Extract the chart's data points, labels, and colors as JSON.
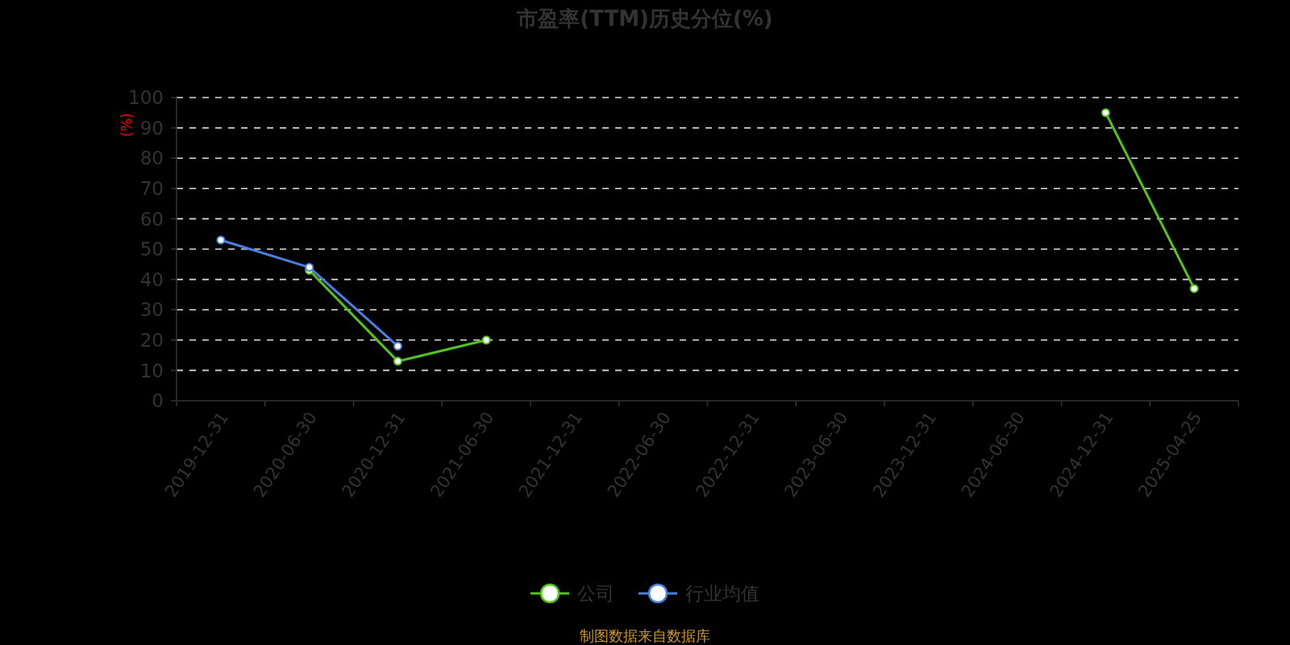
{
  "chart_data": {
    "type": "line",
    "title": "市盈率(TTM)历史分位(%)",
    "ylabel": "(%)",
    "categories": [
      "2019-12-31",
      "2020-06-30",
      "2020-12-31",
      "2021-06-30",
      "2021-12-31",
      "2022-06-30",
      "2022-12-31",
      "2023-06-30",
      "2023-12-31",
      "2024-06-30",
      "2024-12-31",
      "2025-04-25"
    ],
    "series": [
      {
        "name": "公司",
        "color": "#52c41a",
        "values": [
          null,
          43,
          13,
          20,
          null,
          null,
          null,
          null,
          null,
          null,
          95,
          37
        ]
      },
      {
        "name": "行业均值",
        "color": "#4a80e0",
        "values": [
          53,
          44,
          18,
          null,
          null,
          null,
          null,
          null,
          null,
          null,
          null,
          null
        ]
      }
    ],
    "ylim": [
      0,
      100
    ],
    "yticks": [
      0,
      10,
      20,
      30,
      40,
      50,
      60,
      70,
      80,
      90,
      100
    ],
    "grid": "y",
    "legend": "bottom",
    "marker": "circle",
    "line_style": "solid",
    "annotations": [
      "制图数据来自数据库"
    ]
  }
}
